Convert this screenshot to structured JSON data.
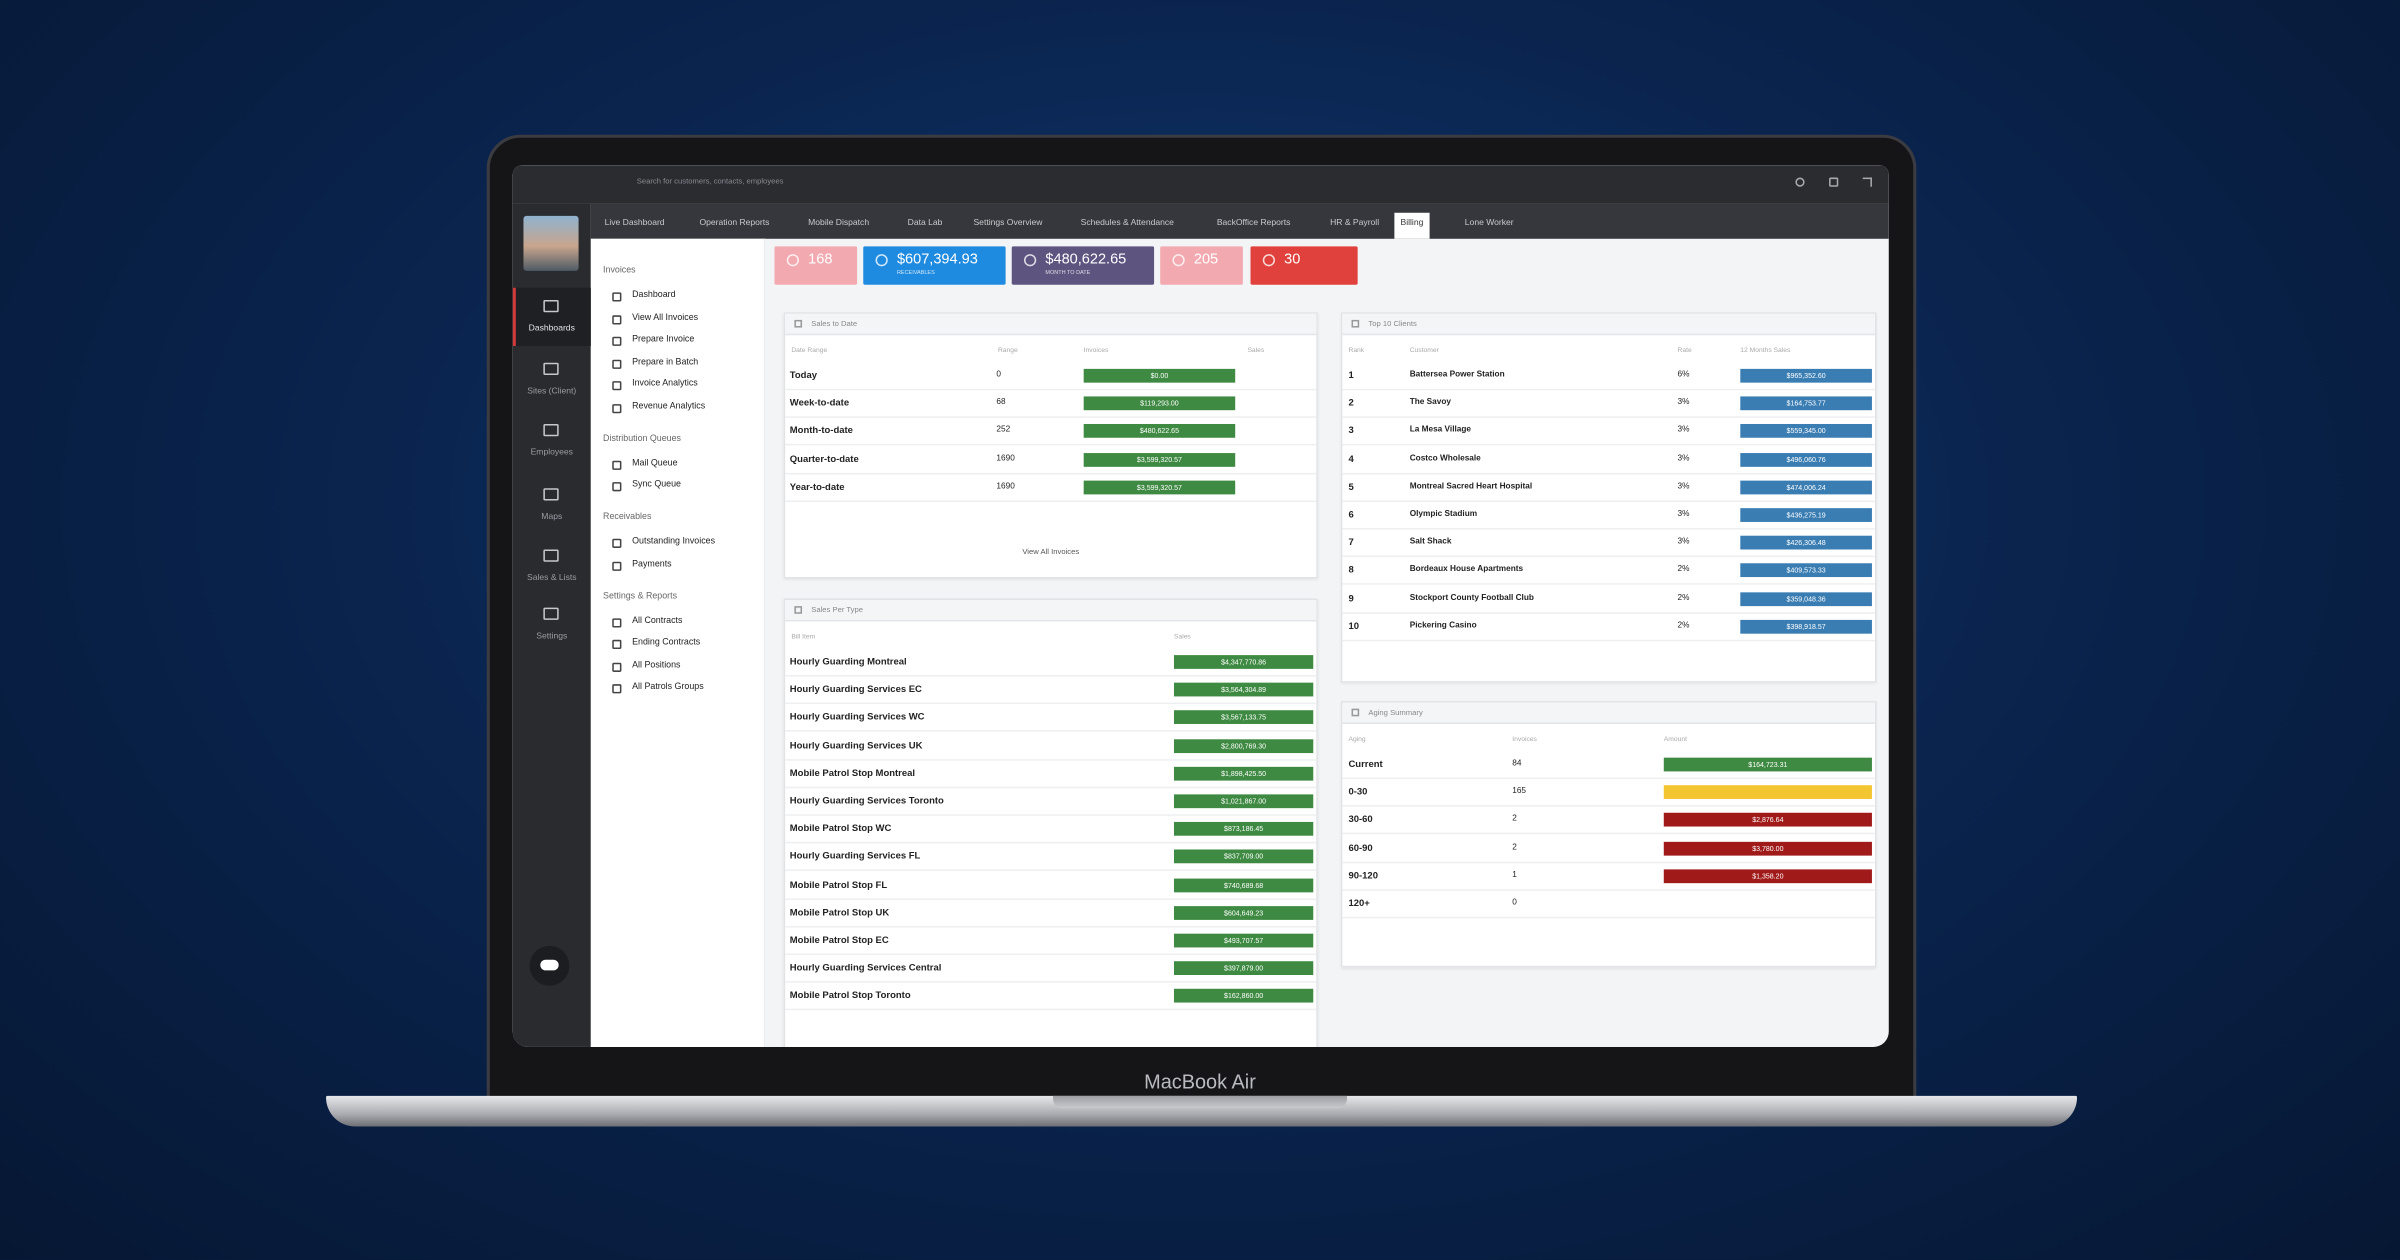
{
  "header": {
    "search_placeholder": "Search for customers, contacts, employees"
  },
  "nav_tabs": [
    "Live Dashboard",
    "Operation Reports",
    "Mobile Dispatch",
    "Data Lab",
    "Settings Overview",
    "Schedules & Attendance",
    "BackOffice Reports",
    "HR & Payroll",
    "Billing",
    "Lone Worker"
  ],
  "rail": [
    "Dashboards",
    "Sites (Client)",
    "Employees",
    "Maps",
    "Sales & Lists",
    "Settings"
  ],
  "sidebar": [
    {
      "title": "Invoices",
      "items": [
        "Dashboard",
        "View All Invoices",
        "Prepare Invoice",
        "Prepare in Batch",
        "Invoice Analytics",
        "Revenue Analytics"
      ]
    },
    {
      "title": "Distribution Queues",
      "items": [
        "Mail Queue",
        "Sync Queue"
      ]
    },
    {
      "title": "Receivables",
      "items": [
        "Outstanding Invoices",
        "Payments"
      ]
    },
    {
      "title": "Settings & Reports",
      "items": [
        "All Contracts",
        "Ending Contracts",
        "All Positions",
        "All Patrols Groups"
      ]
    }
  ],
  "kpis": [
    {
      "value": "168"
    },
    {
      "value": "$607,394.93",
      "label": "RECEIVABLES"
    },
    {
      "value": "$480,622.65",
      "label": "MONTH TO DATE"
    },
    {
      "value": "205"
    },
    {
      "value": "30"
    }
  ],
  "sales_to_date": {
    "title": "Sales to Date",
    "columns": [
      "Date Range",
      "Range",
      "Invoices",
      "Sales"
    ],
    "rows": [
      [
        "Today",
        0,
        "$0.00"
      ],
      [
        "Week-to-date",
        68,
        "$119,293.00"
      ],
      [
        "Month-to-date",
        252,
        "$480,622.65"
      ],
      [
        "Quarter-to-date",
        1690,
        "$3,599,320.57"
      ],
      [
        "Year-to-date",
        1690,
        "$3,599,320.57"
      ]
    ],
    "link": "View All Invoices"
  },
  "sales_per_type": {
    "title": "Sales Per Type",
    "columns": [
      "Bill Item",
      "Sales"
    ],
    "rows": [
      [
        "Hourly Guarding Montreal",
        "$4,347,770.86"
      ],
      [
        "Hourly Guarding Services EC",
        "$3,564,304.89"
      ],
      [
        "Hourly Guarding Services WC",
        "$3,567,133.75"
      ],
      [
        "Hourly Guarding Services UK",
        "$2,800,769.30"
      ],
      [
        "Mobile Patrol Stop Montreal",
        "$1,898,425.50"
      ],
      [
        "Hourly Guarding Services Toronto",
        "$1,021,867.00"
      ],
      [
        "Mobile Patrol Stop WC",
        "$873,186.45"
      ],
      [
        "Hourly Guarding Services FL",
        "$837,709.00"
      ],
      [
        "Mobile Patrol Stop FL",
        "$740,689.68"
      ],
      [
        "Mobile Patrol Stop UK",
        "$604,649.23"
      ],
      [
        "Mobile Patrol Stop EC",
        "$493,707.57"
      ],
      [
        "Hourly Guarding Services Central",
        "$397,879.00"
      ],
      [
        "Mobile Patrol Stop Toronto",
        "$162,860.00"
      ]
    ]
  },
  "top_clients": {
    "title": "Top 10 Clients",
    "columns": [
      "Rank",
      "Customer",
      "Rate",
      "12 Months Sales"
    ],
    "rows": [
      [
        1,
        "Battersea Power Station",
        "6%",
        "$965,352.60"
      ],
      [
        2,
        "The Savoy",
        "3%",
        "$164,753.77"
      ],
      [
        3,
        "La Mesa Village",
        "3%",
        "$559,345.00"
      ],
      [
        4,
        "Costco Wholesale",
        "3%",
        "$496,060.76"
      ],
      [
        5,
        "Montreal Sacred Heart Hospital",
        "3%",
        "$474,006.24"
      ],
      [
        6,
        "Olympic Stadium",
        "3%",
        "$436,275.19"
      ],
      [
        7,
        "Salt Shack",
        "3%",
        "$426,306.48"
      ],
      [
        8,
        "Bordeaux House Apartments",
        "2%",
        "$409,573.33"
      ],
      [
        9,
        "Stockport County Football Club",
        "2%",
        "$359,048.36"
      ],
      [
        10,
        "Pickering Casino",
        "2%",
        "$398,918.57"
      ]
    ]
  },
  "aging_summary": {
    "title": "Aging Summary",
    "columns": [
      "Aging",
      "Invoices",
      "Amount"
    ],
    "rows": [
      [
        "Current",
        84,
        "$164,723.31"
      ],
      [
        "0-30",
        165
      ],
      [
        "30-60",
        2,
        "$2,876.64"
      ],
      [
        "60-90",
        2,
        "$3,780.00"
      ],
      [
        "90-120",
        1,
        "$1,358.20"
      ],
      [
        "120+",
        0,
        0
      ]
    ]
  },
  "device_label": "MacBook Air"
}
